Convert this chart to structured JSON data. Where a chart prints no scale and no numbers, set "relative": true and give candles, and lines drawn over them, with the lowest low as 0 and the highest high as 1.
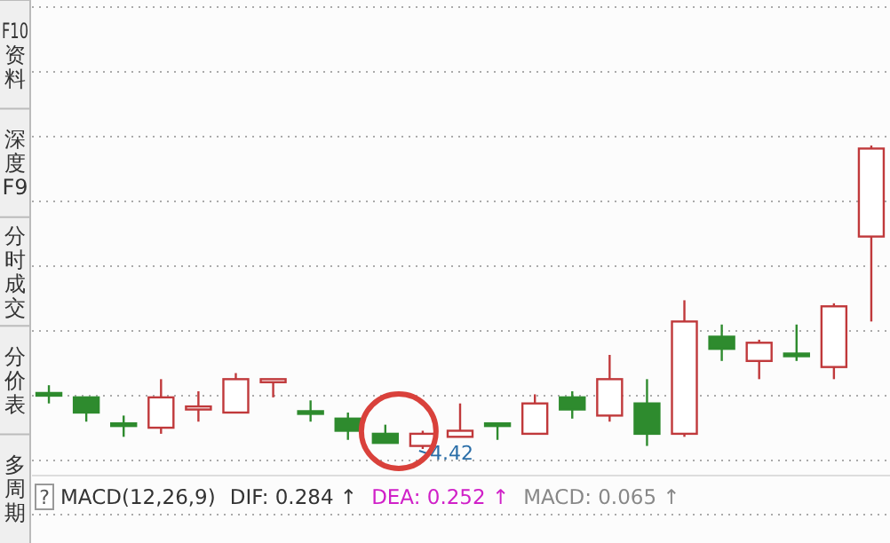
{
  "chart_data": {
    "type": "candlestick",
    "relative": true,
    "grid": true,
    "categories": [
      null,
      null,
      null,
      null,
      null,
      null,
      null,
      null,
      null,
      null,
      null,
      null,
      null,
      null,
      null,
      null,
      null,
      null,
      null,
      null,
      null,
      null,
      null
    ],
    "ohlc": [
      [
        0.18,
        0.21,
        0.15,
        0.18
      ],
      [
        0.17,
        0.17,
        0.09,
        0.12
      ],
      [
        0.08,
        0.11,
        0.04,
        0.08
      ],
      [
        0.07,
        0.23,
        0.05,
        0.17
      ],
      [
        0.13,
        0.19,
        0.09,
        0.14
      ],
      [
        0.12,
        0.25,
        0.12,
        0.23
      ],
      [
        0.22,
        0.23,
        0.17,
        0.23
      ],
      [
        0.12,
        0.16,
        0.09,
        0.12
      ],
      [
        0.1,
        0.12,
        0.03,
        0.06
      ],
      [
        0.05,
        0.08,
        0.02,
        0.02
      ],
      [
        0.01,
        0.06,
        0,
        0.05
      ],
      [
        0.04,
        0.15,
        0.04,
        0.06
      ],
      [
        0.08,
        0.08,
        0.03,
        0.08
      ],
      [
        0.05,
        0.18,
        0.05,
        0.15
      ],
      [
        0.17,
        0.19,
        0.1,
        0.13
      ],
      [
        0.11,
        0.31,
        0.09,
        0.23
      ],
      [
        0.15,
        0.23,
        0.01,
        0.05
      ],
      [
        0.05,
        0.49,
        0.04,
        0.42
      ],
      [
        0.37,
        0.41,
        0.29,
        0.33
      ],
      [
        0.29,
        0.36,
        0.23,
        0.35
      ],
      [
        0.31,
        0.41,
        0.29,
        0.31
      ],
      [
        0.27,
        0.48,
        0.23,
        0.47
      ],
      [
        0.7,
        1.0,
        0.42,
        0.99
      ]
    ],
    "annotations": [
      "4.42",
      "F10资料",
      "深度F9",
      "分时成交",
      "分价表",
      "多周期",
      "?",
      "MACD(12,26,9)",
      "DIF: 0.284 ↑",
      "DEA: 0.252 ↑",
      "MACD: 0.065 ↑"
    ]
  }
}
